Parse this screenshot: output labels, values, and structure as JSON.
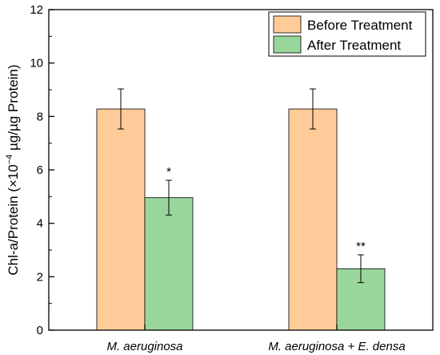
{
  "chart_data": {
    "type": "bar",
    "categories": [
      "M. aeruginosa",
      "M. aeruginosa + E. densa"
    ],
    "series": [
      {
        "name": "Before Treatment",
        "values": [
          8.28,
          8.28
        ],
        "errors": [
          0.75,
          0.75
        ],
        "color": "#FFCC99"
      },
      {
        "name": "After Treatment",
        "values": [
          4.96,
          2.3
        ],
        "errors": [
          0.65,
          0.52
        ],
        "color": "#99D69C"
      }
    ],
    "significance": [
      {
        "series": 1,
        "category": 0,
        "label": "*"
      },
      {
        "series": 1,
        "category": 1,
        "label": "**"
      }
    ],
    "ylabel": {
      "prefix": "Chl-a/Protein (×10",
      "exponent": "−4",
      "suffix": " µg/µg Protein)"
    },
    "xlabel": "",
    "ylim": [
      0,
      12
    ],
    "yticks": [
      "0",
      "2",
      "4",
      "6",
      "8",
      "10",
      "12"
    ],
    "legend_position": "top-right",
    "grid": false
  }
}
